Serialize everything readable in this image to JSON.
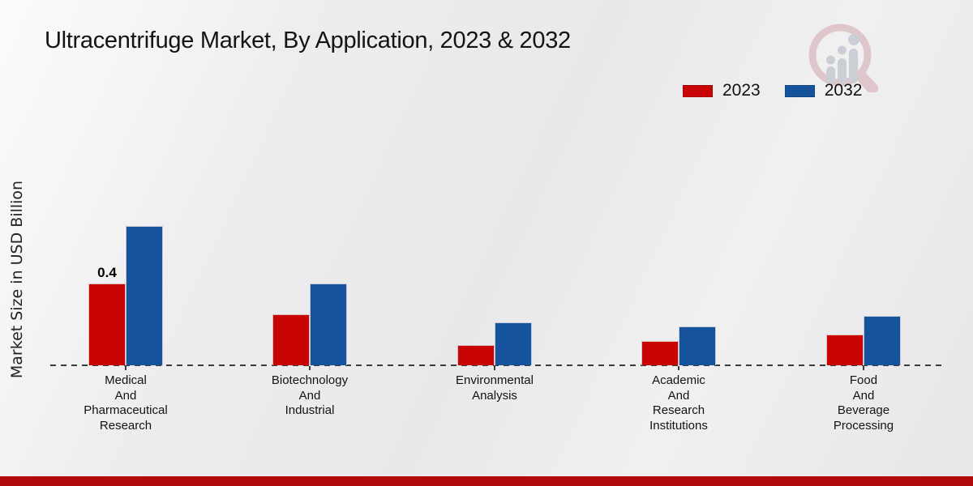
{
  "title": "Ultracentrifuge Market, By Application, 2023 & 2032",
  "chart_data": {
    "type": "bar",
    "title": "Ultracentrifuge Market, By Application, 2023 & 2032",
    "xlabel": "",
    "ylabel": "Market Size in USD Billion",
    "ylim": [
      0,
      0.8
    ],
    "grid": false,
    "legend_position": "top-right",
    "baseline_style": "dashed",
    "categories": [
      "Medical And Pharmaceutical Research",
      "Biotechnology And Industrial",
      "Environmental Analysis",
      "Academic And Research Institutions",
      "Food And Beverage Processing"
    ],
    "category_lines": [
      [
        "Medical",
        "And",
        "Pharmaceutical",
        "Research"
      ],
      [
        "Biotechnology",
        "And",
        "Industrial"
      ],
      [
        "Environmental",
        "Analysis"
      ],
      [
        "Academic",
        "And",
        "Research",
        "Institutions"
      ],
      [
        "Food",
        "And",
        "Beverage",
        "Processing"
      ]
    ],
    "series": [
      {
        "name": "2023",
        "color": "#c90404",
        "values": [
          0.4,
          0.25,
          0.1,
          0.12,
          0.15
        ]
      },
      {
        "name": "2032",
        "color": "#15549d",
        "values": [
          0.68,
          0.4,
          0.21,
          0.19,
          0.24
        ]
      }
    ],
    "annotations": [
      {
        "series": "2023",
        "category": "Medical And Pharmaceutical Research",
        "text": "0.4"
      }
    ]
  },
  "branding": {
    "logo_icon": "magnifier-growth-chart-watermark",
    "footer_bar_color": "#b20a0a",
    "logo_ring_color": "#dcc0c4",
    "logo_bar_color": "#c5c9d0"
  }
}
